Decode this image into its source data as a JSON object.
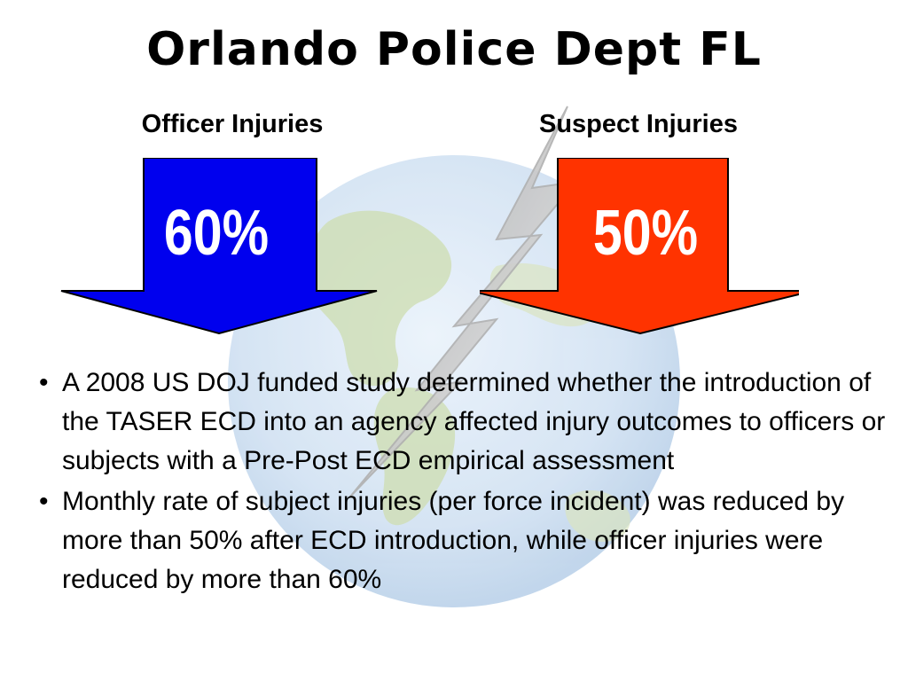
{
  "slide": {
    "title": "Orlando Police Dept FL"
  },
  "arrows": [
    {
      "label": "Officer Injuries",
      "value": "60%",
      "color": "#0000ee"
    },
    {
      "label": "Suspect Injuries",
      "value": "50%",
      "color": "#ff3300"
    }
  ],
  "bullets": [
    "A 2008 US DOJ funded study determined whether the introduction of the TASER ECD into an agency affected injury outcomes to officers or subjects with a Pre-Post ECD empirical assessment",
    "Monthly rate of subject injuries (per force incident) was reduced by more than 50% after ECD introduction, while officer injuries were reduced by more than 60%"
  ],
  "colors": {
    "background": "#ffffff",
    "officer_arrow": "#0000ee",
    "suspect_arrow": "#ff3300",
    "text": "#000000"
  }
}
